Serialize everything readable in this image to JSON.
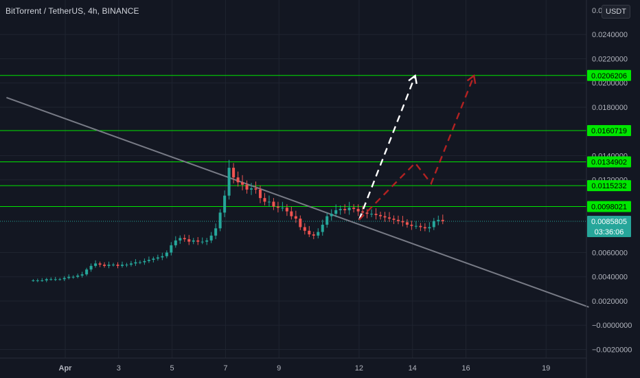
{
  "header": {
    "symbol_title": "BitTorrent / TetherUS, 4h, BINANCE",
    "currency_label": "USDT",
    "top_axis_partial": "0.0"
  },
  "colors": {
    "background": "#131722",
    "grid": "#1f2430",
    "up": "#26a69a",
    "down": "#ef5350",
    "level_line": "#00e600",
    "trendline": "#787b86",
    "bullish_projection": "#ffffff",
    "bearish_projection": "#b22222",
    "last_price": "#26a69a"
  },
  "chart_data": {
    "type": "candlestick",
    "symbol": "BitTorrent / TetherUS",
    "interval": "4h",
    "exchange": "BINANCE",
    "ylim": [
      -0.0022,
      0.026
    ],
    "x_ticks": [
      {
        "label": "Apr",
        "day": 1
      },
      {
        "label": "3",
        "day": 3
      },
      {
        "label": "5",
        "day": 5
      },
      {
        "label": "7",
        "day": 7
      },
      {
        "label": "9",
        "day": 9
      },
      {
        "label": "12",
        "day": 12
      },
      {
        "label": "14",
        "day": 14
      },
      {
        "label": "16",
        "day": 16
      },
      {
        "label": "19",
        "day": 19
      }
    ],
    "y_ticks": [
      "0.0240000",
      "0.0220000",
      "0.0200000",
      "0.0180000",
      "0.0140000",
      "0.0120000",
      "0.0060000",
      "0.0040000",
      "0.0020000",
      "−0.0000000",
      "−0.0020000"
    ],
    "horizontal_levels": [
      "0.0206206",
      "0.0160719",
      "0.0134902",
      "0.0115232",
      "0.0098021"
    ],
    "last_price": {
      "value": "0.0085805",
      "countdown": "03:36:06"
    },
    "trendline": {
      "start": {
        "day": -1.2,
        "price": 0.0188
      },
      "end": {
        "day": 20.6,
        "price": 0.0015
      }
    },
    "projection_bullish": [
      {
        "day": 12.0,
        "price": 0.0087
      },
      {
        "day": 14.1,
        "price": 0.0206
      }
    ],
    "projection_bearish": [
      {
        "day": 12.0,
        "price": 0.0087
      },
      {
        "day": 14.1,
        "price": 0.0134
      },
      {
        "day": 14.7,
        "price": 0.0117
      },
      {
        "day": 16.3,
        "price": 0.0206
      }
    ],
    "close_series": [
      0.0037,
      0.0037,
      0.0037,
      0.0038,
      0.0038,
      0.0038,
      0.0038,
      0.0039,
      0.004,
      0.004,
      0.0041,
      0.0042,
      0.0046,
      0.0049,
      0.0051,
      0.005,
      0.0049,
      0.005,
      0.005,
      0.0049,
      0.005,
      0.005,
      0.0051,
      0.0052,
      0.0052,
      0.0053,
      0.0054,
      0.0055,
      0.0056,
      0.0057,
      0.006,
      0.0066,
      0.007,
      0.0072,
      0.0071,
      0.0069,
      0.007,
      0.0069,
      0.0069,
      0.007,
      0.0074,
      0.008,
      0.0093,
      0.0107,
      0.013,
      0.0122,
      0.0118,
      0.0116,
      0.0112,
      0.0113,
      0.0112,
      0.0105,
      0.0102,
      0.0102,
      0.0098,
      0.0097,
      0.0097,
      0.0094,
      0.009,
      0.0088,
      0.0081,
      0.0078,
      0.0075,
      0.0074,
      0.0077,
      0.0083,
      0.009,
      0.0092,
      0.0095,
      0.0096,
      0.0095,
      0.0097,
      0.0096,
      0.0094,
      0.0093,
      0.0092,
      0.0092,
      0.0091,
      0.009,
      0.0089,
      0.0088,
      0.0087,
      0.0086,
      0.0085,
      0.0083,
      0.0082,
      0.0082,
      0.0081,
      0.008,
      0.0081,
      0.0086,
      0.0087,
      0.0086
    ]
  }
}
